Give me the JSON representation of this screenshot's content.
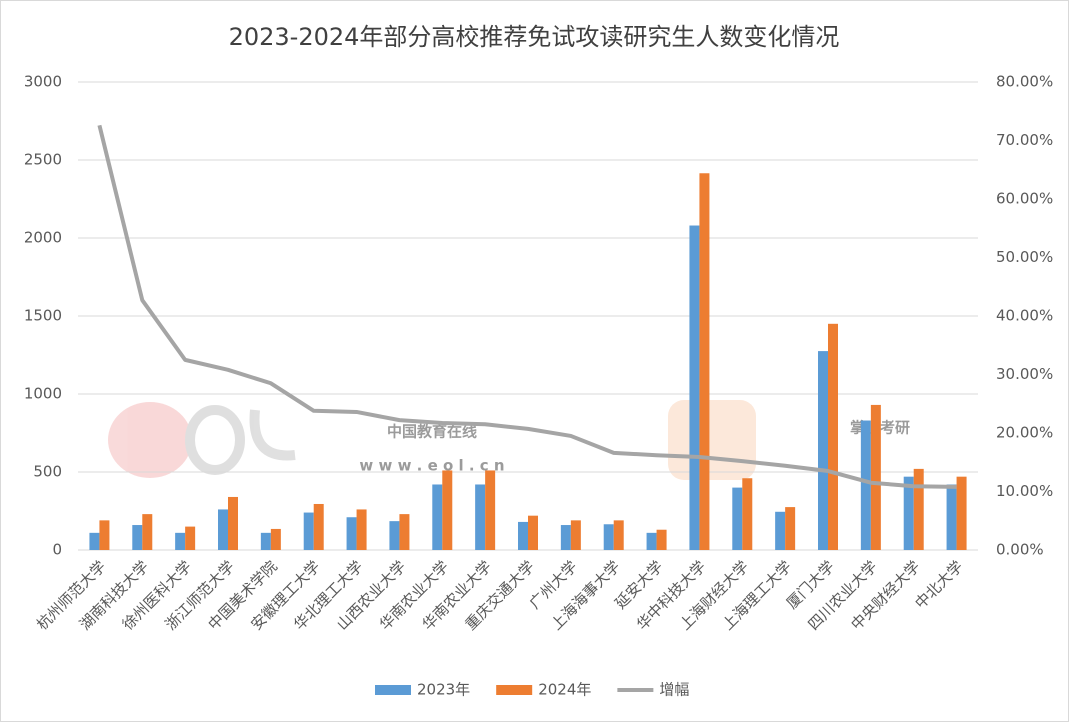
{
  "chart_data": {
    "type": "bar",
    "title": "2023-2024年部分高校推荐免试攻读研究生人数变化情况",
    "categories": [
      "杭州师范大学",
      "湖南科技大学",
      "徐州医科大学",
      "浙江师范大学",
      "中国美术学院",
      "安徽理工大学",
      "华北理工大学",
      "山西农业大学",
      "华南农业大学",
      "华南农业大学",
      "重庆交通大学",
      "广州大学",
      "上海海事大学",
      "延安大学",
      "华中科技大学",
      "上海财经大学",
      "上海理工大学",
      "厦门大学",
      "四川农业大学",
      "中央财经大学",
      "中北大学"
    ],
    "series": [
      {
        "name": "2023年",
        "color": "#5b9bd5",
        "values": [
          110,
          160,
          110,
          260,
          110,
          240,
          210,
          185,
          420,
          420,
          180,
          160,
          165,
          110,
          2080,
          400,
          245,
          1275,
          830,
          470,
          420
        ]
      },
      {
        "name": "2024年",
        "color": "#ed7d31",
        "values": [
          190,
          230,
          150,
          340,
          135,
          295,
          260,
          230,
          510,
          510,
          220,
          190,
          190,
          130,
          2415,
          460,
          275,
          1450,
          930,
          520,
          470
        ]
      },
      {
        "name": "增幅",
        "color": "#a5a5a5",
        "type": "line",
        "axis": "y2",
        "values": [
          72.6,
          42.7,
          32.5,
          30.8,
          28.5,
          23.8,
          23.6,
          22.2,
          21.7,
          21.5,
          20.7,
          19.5,
          16.6,
          16.2,
          15.9,
          15.2,
          14.4,
          13.5,
          11.5,
          10.9,
          10.8
        ]
      }
    ],
    "ylim": [
      0,
      3000
    ],
    "yticks": [
      0,
      500,
      1000,
      1500,
      2000,
      2500,
      3000
    ],
    "y2lim": [
      0,
      80
    ],
    "y2ticks": [
      {
        "value": 0,
        "label": "0.00%"
      },
      {
        "value": 10,
        "label": "10.00%"
      },
      {
        "value": 20,
        "label": "20.00%"
      },
      {
        "value": 30,
        "label": "30.00%"
      },
      {
        "value": 40,
        "label": "40.00%"
      },
      {
        "value": 50,
        "label": "50.00%"
      },
      {
        "value": 60,
        "label": "60.00%"
      },
      {
        "value": 70,
        "label": "70.00%"
      },
      {
        "value": 80,
        "label": "80.00%"
      }
    ],
    "grid": true,
    "legend": "bottom",
    "watermarks": [
      "中国教育在线",
      "w w w . e o l . c n",
      "掌上考研"
    ]
  }
}
